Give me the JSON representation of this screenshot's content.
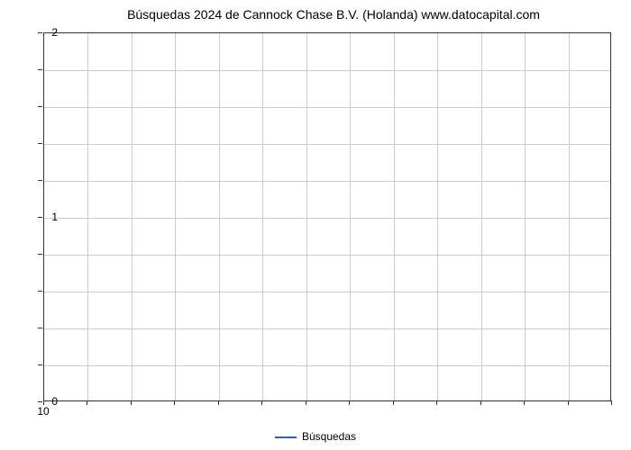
{
  "chart": {
    "type": "line",
    "title": "Búsquedas 2024 de Cannock Chase B.V. (Holanda) www.datocapital.com",
    "title_fontsize": 14,
    "title_color": "#000000",
    "background_color": "#ffffff",
    "grid_color": "#cccccc",
    "axis_color": "#333333",
    "label_fontsize": 12,
    "xlim": [
      10,
      10
    ],
    "ylim": [
      0,
      2
    ],
    "ytick_labels": [
      "0",
      "1",
      "2"
    ],
    "ytick_positions": [
      0,
      1,
      2
    ],
    "y_minor_count": 4,
    "xtick_labels": [
      "10"
    ],
    "xtick_positions": [
      10
    ],
    "x_vgrid_count": 13,
    "x_minor_visible": true,
    "series": [
      {
        "name": "Búsquedas",
        "color": "#335fad",
        "data": []
      }
    ],
    "legend": {
      "label": "Búsquedas",
      "color": "#335fad"
    }
  }
}
